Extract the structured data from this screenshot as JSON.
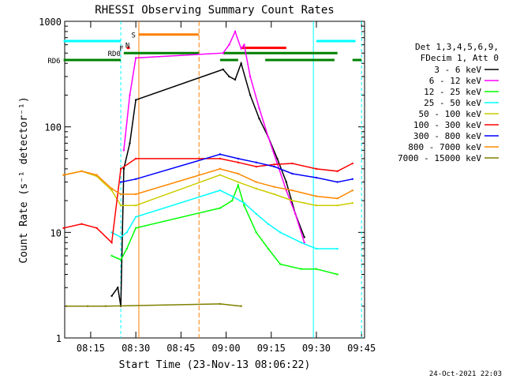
{
  "chart_data": {
    "type": "line",
    "title": "RHESSI Observing Summary Count Rates",
    "xlabel": "Start Time (23-Nov-13 08:06:22)",
    "ylabel": "Count Rate (s⁻¹ detector⁻¹)",
    "y_scale": "log",
    "ylim": [
      1,
      1000
    ],
    "xlim": [
      "08:06:22",
      "09:46:00"
    ],
    "x_ticks": [
      "08:15",
      "08:30",
      "08:45",
      "09:00",
      "09:15",
      "09:30",
      "09:45"
    ],
    "y_ticks": [
      "1",
      "10",
      "100",
      "1000"
    ],
    "footer_date": "24-Oct-2021 22:03",
    "legend_header": [
      "Det 1,3,4,5,6,9,",
      "FDecim 1, Att 0"
    ],
    "series": [
      {
        "name": "3 - 6 keV",
        "color": "#000000",
        "x": [
          "08:22",
          "08:24",
          "08:25",
          "08:26",
          "08:28",
          "08:30",
          "08:59",
          "09:01",
          "09:03",
          "09:05",
          "09:08",
          "09:11",
          "09:14",
          "09:17",
          "09:20",
          "09:23",
          "09:26"
        ],
        "y": [
          2.5,
          3,
          2,
          40,
          70,
          180,
          350,
          300,
          280,
          400,
          200,
          120,
          80,
          50,
          30,
          15,
          9
        ]
      },
      {
        "name": "6 - 12 keV",
        "color": "#ff00ff",
        "x": [
          "08:26",
          "08:28",
          "08:30",
          "08:59",
          "09:01",
          "09:03",
          "09:05",
          "09:06",
          "09:08",
          "09:11",
          "09:14",
          "09:17",
          "09:20",
          "09:23",
          "09:26"
        ],
        "y": [
          60,
          200,
          450,
          500,
          600,
          800,
          550,
          600,
          300,
          150,
          80,
          45,
          25,
          15,
          8
        ]
      },
      {
        "name": "12 - 25 keV",
        "color": "#00ff00",
        "x": [
          "08:22",
          "08:25",
          "08:27",
          "08:30",
          "08:58",
          "09:02",
          "09:04",
          "09:06",
          "09:10",
          "09:14",
          "09:18",
          "09:25",
          "09:30",
          "09:37"
        ],
        "y": [
          6,
          5.5,
          7,
          11,
          17,
          20,
          28,
          18,
          10,
          7,
          5,
          4.5,
          4.5,
          4
        ]
      },
      {
        "name": "25 - 50 keV",
        "color": "#00ffff",
        "x": [
          "08:22",
          "08:25",
          "08:27",
          "08:30",
          "08:58",
          "09:02",
          "09:06",
          "09:10",
          "09:14",
          "09:18",
          "09:25",
          "09:30",
          "09:37"
        ],
        "y": [
          10,
          9,
          10,
          14,
          25,
          22,
          19,
          15,
          12,
          10,
          8,
          7,
          7
        ]
      },
      {
        "name": "50 - 100 keV",
        "color": "#cccc00",
        "x": [
          "08:06",
          "08:12",
          "08:17",
          "08:22",
          "08:25",
          "08:30",
          "08:58",
          "09:04",
          "09:10",
          "09:16",
          "09:22",
          "09:30",
          "09:37",
          "09:42"
        ],
        "y": [
          35,
          38,
          34,
          25,
          18,
          18,
          35,
          30,
          26,
          23,
          20,
          18,
          18,
          19
        ]
      },
      {
        "name": "100 - 300 keV",
        "color": "#ff0000",
        "x": [
          "08:06",
          "08:12",
          "08:17",
          "08:22",
          "08:25",
          "08:30",
          "08:58",
          "09:04",
          "09:10",
          "09:16",
          "09:22",
          "09:30",
          "09:37",
          "09:42"
        ],
        "y": [
          11,
          12,
          11,
          8,
          40,
          50,
          50,
          46,
          42,
          44,
          45,
          40,
          38,
          45
        ]
      },
      {
        "name": "300 - 800 keV",
        "color": "#0000ff",
        "x": [
          "08:25",
          "08:30",
          "08:58",
          "09:04",
          "09:10",
          "09:16",
          "09:22",
          "09:30",
          "09:37",
          "09:42"
        ],
        "y": [
          30,
          32,
          55,
          50,
          46,
          42,
          36,
          33,
          30,
          32
        ]
      },
      {
        "name": "800 - 7000 keV",
        "color": "#ff8800",
        "x": [
          "08:06",
          "08:12",
          "08:17",
          "08:22",
          "08:25",
          "08:30",
          "08:58",
          "09:04",
          "09:10",
          "09:16",
          "09:22",
          "09:30",
          "09:37",
          "09:42"
        ],
        "y": [
          35,
          38,
          35,
          26,
          23,
          23,
          40,
          36,
          30,
          27,
          25,
          22,
          21,
          25
        ]
      },
      {
        "name": "7000 - 15000 keV",
        "color": "#808000",
        "x": [
          "08:07",
          "08:14",
          "08:20",
          "08:58",
          "09:05"
        ],
        "y": [
          2,
          2,
          2,
          2.1,
          2
        ]
      }
    ],
    "flags": [
      {
        "name": "",
        "color": "#00ffff",
        "level": 650,
        "segments": [
          [
            "08:06",
            "08:25"
          ],
          [
            "09:30",
            "09:43"
          ]
        ]
      },
      {
        "name": "S",
        "color": "#ff8000",
        "level": 750,
        "segments": [
          [
            "08:31",
            "08:51"
          ]
        ]
      },
      {
        "name": "F",
        "color": "#ff0000",
        "level": 560,
        "segments": [
          [
            "08:27",
            "08:28"
          ],
          [
            "09:05",
            "09:20"
          ]
        ]
      },
      {
        "name": "N",
        "color": "#00ffff",
        "level": 600,
        "segments": []
      },
      {
        "name": "RD0",
        "color": "#008000",
        "level": 500,
        "segments": [
          [
            "08:26",
            "08:51"
          ],
          [
            "08:59",
            "09:37"
          ]
        ]
      },
      {
        "name": "RD6",
        "color": "#008000",
        "level": 430,
        "segments": [
          [
            "08:06",
            "08:25"
          ],
          [
            "08:58",
            "09:04"
          ],
          [
            "09:13",
            "09:36"
          ],
          [
            "09:42",
            "09:45"
          ]
        ]
      }
    ]
  }
}
